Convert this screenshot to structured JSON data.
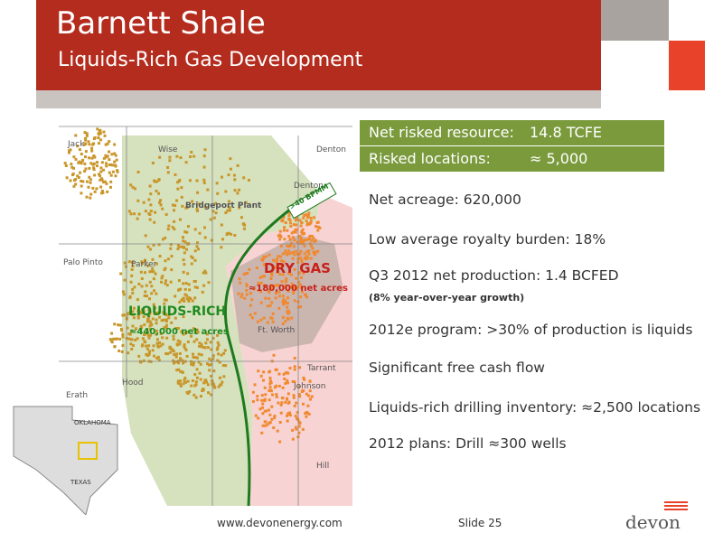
{
  "header": {
    "title": "Barnett Shale",
    "subtitle": "Liquids-Rich Gas Development"
  },
  "table": {
    "rows": [
      [
        "Net risked resource:",
        "14.8 TCFE"
      ],
      [
        "Risked locations:",
        "≈ 5,000"
      ]
    ]
  },
  "bullets": [
    {
      "text": "Net acreage: 620,000"
    },
    {
      "text": "Low average royalty burden: 18%"
    },
    {
      "text": "Q3 2012 net production: 1.4 BCFED",
      "note": "(8% year-over-year growth)"
    },
    {
      "text": "2012e program: >30% of production is liquids"
    },
    {
      "text": "Significant free cash flow"
    },
    {
      "text": "Liquids-rich drilling inventory: ≈2,500 locations"
    },
    {
      "text": "2012 plans: Drill ≈300 wells"
    }
  ],
  "map": {
    "labels": [
      "Jack",
      "Wise",
      "Denton",
      "Denton",
      "Bridgeport Plant",
      ">40 BPMM",
      "Palo Pinto",
      "Parker",
      "DRY GAS",
      "≈180,000 net acres",
      "LIQUIDS-RICH",
      "≈440,000 net acres",
      "Ft. Worth",
      "Tarrant",
      "Johnson",
      "Erath",
      "Hood",
      "Hill",
      "OKLAHOMA",
      "TEXAS"
    ]
  },
  "footer": {
    "url": "www.devonenergy.com",
    "slide": "Slide 25",
    "logo": "devon"
  }
}
